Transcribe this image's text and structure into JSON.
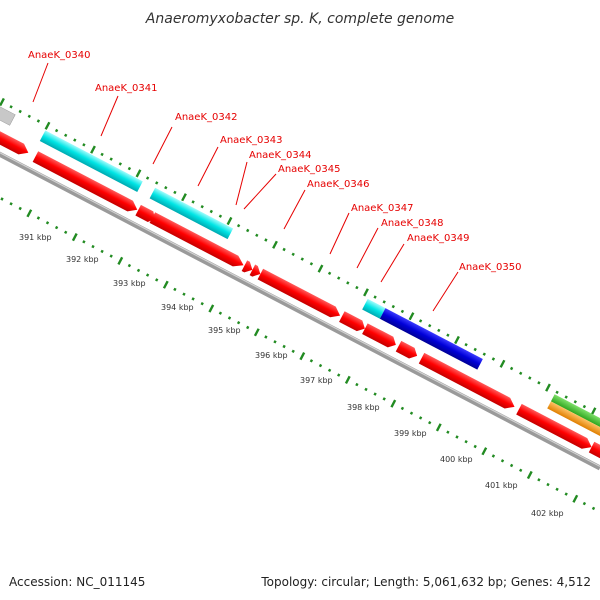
{
  "title": "Anaeromyxobacter sp. K, complete genome",
  "footer": {
    "accession": "Accession: NC_011145",
    "summary": "Topology: circular; Length: 5,061,632 bp; Genes: 4,512"
  },
  "colors": {
    "label": "#e60000",
    "forward_cds": "#ff0000",
    "reverse_cds": "#00e5e5",
    "rna": "#0000cc",
    "tick": "#228b22",
    "backbone": "#9a9a9a"
  },
  "gene_labels": [
    "AnaeK_0340",
    "AnaeK_0341",
    "AnaeK_0342",
    "AnaeK_0343",
    "AnaeK_0344",
    "AnaeK_0345",
    "AnaeK_0346",
    "AnaeK_0347",
    "AnaeK_0348",
    "AnaeK_0349",
    "AnaeK_0350"
  ],
  "kbp_labels": [
    "391 kbp",
    "392 kbp",
    "393 kbp",
    "394 kbp",
    "395 kbp",
    "396 kbp",
    "397 kbp",
    "398 kbp",
    "399 kbp",
    "400 kbp",
    "401 kbp",
    "402 kbp"
  ]
}
